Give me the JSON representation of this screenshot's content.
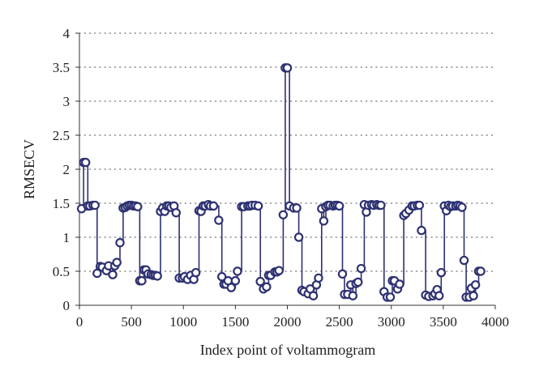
{
  "chart_data": {
    "type": "line",
    "title": "",
    "xlabel": "Index point of voltammogram",
    "ylabel": "RMSECV",
    "xlim": [
      0,
      4000
    ],
    "ylim": [
      0,
      4
    ],
    "xticks": [
      0,
      500,
      1000,
      1500,
      2000,
      2500,
      3000,
      3500,
      4000
    ],
    "yticks": [
      0,
      0.5,
      1,
      1.5,
      2,
      2.5,
      3,
      3.5,
      4
    ],
    "grid": "horizontal-dotted",
    "series": [
      {
        "color": "#2e3172",
        "marker": "open-circle",
        "step": true,
        "points": [
          [
            20,
            1.42
          ],
          [
            40,
            2.1
          ],
          [
            60,
            2.1
          ],
          [
            80,
            1.46
          ],
          [
            100,
            1.46
          ],
          [
            130,
            1.47
          ],
          [
            150,
            1.47
          ],
          [
            170,
            0.47
          ],
          [
            200,
            0.57
          ],
          [
            220,
            0.56
          ],
          [
            260,
            0.51
          ],
          [
            280,
            0.58
          ],
          [
            320,
            0.45
          ],
          [
            340,
            0.58
          ],
          [
            360,
            0.63
          ],
          [
            390,
            0.92
          ],
          [
            420,
            1.43
          ],
          [
            440,
            1.44
          ],
          [
            460,
            1.46
          ],
          [
            480,
            1.47
          ],
          [
            500,
            1.47
          ],
          [
            520,
            1.46
          ],
          [
            540,
            1.46
          ],
          [
            560,
            1.45
          ],
          [
            580,
            0.36
          ],
          [
            600,
            0.36
          ],
          [
            620,
            0.52
          ],
          [
            640,
            0.52
          ],
          [
            660,
            0.46
          ],
          [
            690,
            0.45
          ],
          [
            710,
            0.44
          ],
          [
            730,
            0.44
          ],
          [
            750,
            0.43
          ],
          [
            780,
            1.38
          ],
          [
            800,
            1.43
          ],
          [
            820,
            1.38
          ],
          [
            840,
            1.46
          ],
          [
            860,
            1.46
          ],
          [
            880,
            1.44
          ],
          [
            910,
            1.46
          ],
          [
            930,
            1.36
          ],
          [
            960,
            0.4
          ],
          [
            990,
            0.4
          ],
          [
            1010,
            0.42
          ],
          [
            1040,
            0.38
          ],
          [
            1070,
            0.44
          ],
          [
            1100,
            0.38
          ],
          [
            1120,
            0.48
          ],
          [
            1150,
            1.39
          ],
          [
            1170,
            1.38
          ],
          [
            1190,
            1.46
          ],
          [
            1210,
            1.46
          ],
          [
            1240,
            1.48
          ],
          [
            1260,
            1.46
          ],
          [
            1290,
            1.46
          ],
          [
            1340,
            1.25
          ],
          [
            1370,
            0.42
          ],
          [
            1390,
            0.31
          ],
          [
            1410,
            0.31
          ],
          [
            1430,
            0.36
          ],
          [
            1460,
            0.26
          ],
          [
            1500,
            0.36
          ],
          [
            1520,
            0.5
          ],
          [
            1560,
            1.45
          ],
          [
            1580,
            1.45
          ],
          [
            1620,
            1.46
          ],
          [
            1640,
            1.46
          ],
          [
            1660,
            1.47
          ],
          [
            1690,
            1.47
          ],
          [
            1720,
            1.46
          ],
          [
            1740,
            0.35
          ],
          [
            1770,
            0.24
          ],
          [
            1800,
            0.27
          ],
          [
            1820,
            0.44
          ],
          [
            1840,
            0.44
          ],
          [
            1880,
            0.49
          ],
          [
            1900,
            0.49
          ],
          [
            1920,
            0.51
          ],
          [
            1960,
            1.33
          ],
          [
            1980,
            3.49
          ],
          [
            2000,
            3.49
          ],
          [
            2020,
            1.46
          ],
          [
            2060,
            1.43
          ],
          [
            2090,
            1.43
          ],
          [
            2110,
            1.0
          ],
          [
            2140,
            0.22
          ],
          [
            2160,
            0.2
          ],
          [
            2200,
            0.17
          ],
          [
            2220,
            0.24
          ],
          [
            2250,
            0.14
          ],
          [
            2280,
            0.3
          ],
          [
            2300,
            0.4
          ],
          [
            2330,
            1.42
          ],
          [
            2350,
            1.24
          ],
          [
            2370,
            1.45
          ],
          [
            2390,
            1.47
          ],
          [
            2410,
            1.47
          ],
          [
            2440,
            1.46
          ],
          [
            2460,
            1.47
          ],
          [
            2480,
            1.47
          ],
          [
            2500,
            1.46
          ],
          [
            2530,
            0.46
          ],
          [
            2550,
            0.16
          ],
          [
            2580,
            0.16
          ],
          [
            2610,
            0.3
          ],
          [
            2630,
            0.14
          ],
          [
            2660,
            0.32
          ],
          [
            2680,
            0.34
          ],
          [
            2710,
            0.54
          ],
          [
            2740,
            1.48
          ],
          [
            2760,
            1.37
          ],
          [
            2780,
            1.47
          ],
          [
            2810,
            1.48
          ],
          [
            2830,
            1.47
          ],
          [
            2860,
            1.48
          ],
          [
            2880,
            1.47
          ],
          [
            2900,
            1.47
          ],
          [
            2930,
            0.2
          ],
          [
            2960,
            0.12
          ],
          [
            2990,
            0.12
          ],
          [
            3010,
            0.36
          ],
          [
            3030,
            0.36
          ],
          [
            3060,
            0.24
          ],
          [
            3080,
            0.31
          ],
          [
            3120,
            1.32
          ],
          [
            3140,
            1.35
          ],
          [
            3170,
            1.4
          ],
          [
            3200,
            1.46
          ],
          [
            3220,
            1.46
          ],
          [
            3250,
            1.47
          ],
          [
            3270,
            1.47
          ],
          [
            3290,
            1.1
          ],
          [
            3330,
            0.15
          ],
          [
            3360,
            0.13
          ],
          [
            3400,
            0.14
          ],
          [
            3420,
            0.17
          ],
          [
            3440,
            0.23
          ],
          [
            3460,
            0.14
          ],
          [
            3480,
            0.48
          ],
          [
            3510,
            1.46
          ],
          [
            3530,
            1.39
          ],
          [
            3550,
            1.47
          ],
          [
            3570,
            1.45
          ],
          [
            3590,
            1.46
          ],
          [
            3620,
            1.46
          ],
          [
            3640,
            1.47
          ],
          [
            3660,
            1.46
          ],
          [
            3680,
            1.44
          ],
          [
            3700,
            0.66
          ],
          [
            3720,
            0.12
          ],
          [
            3750,
            0.12
          ],
          [
            3770,
            0.25
          ],
          [
            3790,
            0.14
          ],
          [
            3810,
            0.3
          ],
          [
            3840,
            0.5
          ],
          [
            3860,
            0.5
          ]
        ]
      }
    ]
  }
}
